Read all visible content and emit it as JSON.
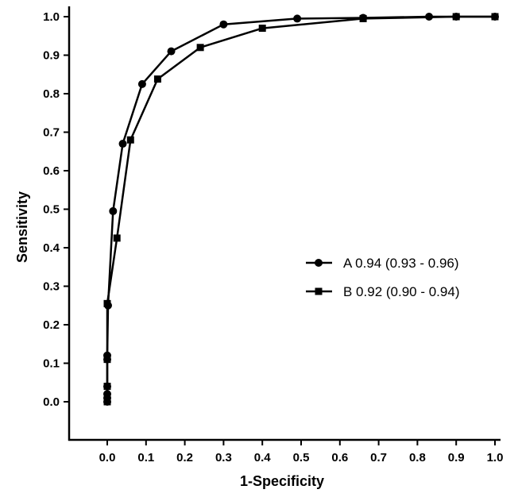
{
  "chart_data": {
    "type": "line",
    "xlabel": "1-Specificity",
    "ylabel": "Sensitivity",
    "xlim": [
      0.0,
      1.0
    ],
    "ylim": [
      0.0,
      1.0
    ],
    "x_ticks": [
      "0.0",
      "0.1",
      "0.2",
      "0.3",
      "0.4",
      "0.5",
      "0.6",
      "0.7",
      "0.8",
      "0.9",
      "1.0"
    ],
    "y_ticks": [
      "0.0",
      "0.1",
      "0.2",
      "0.3",
      "0.4",
      "0.5",
      "0.6",
      "0.7",
      "0.8",
      "0.9",
      "1.0"
    ],
    "grid": false,
    "legend_position": "right-middle",
    "series": [
      {
        "name": "A 0.94 (0.93 - 0.96)",
        "marker": "circle",
        "color": "#000000",
        "points": [
          [
            0.0,
            0.0
          ],
          [
            0.0,
            0.01
          ],
          [
            0.0,
            0.02
          ],
          [
            0.0,
            0.04
          ],
          [
            0.0,
            0.11
          ],
          [
            0.0,
            0.12
          ],
          [
            0.002,
            0.25
          ],
          [
            0.015,
            0.495
          ],
          [
            0.04,
            0.67
          ],
          [
            0.09,
            0.825
          ],
          [
            0.165,
            0.91
          ],
          [
            0.3,
            0.98
          ],
          [
            0.49,
            0.995
          ],
          [
            0.66,
            0.997
          ],
          [
            0.83,
            1.0
          ],
          [
            0.9,
            1.0
          ],
          [
            1.0,
            1.0
          ]
        ]
      },
      {
        "name": "B 0.92 (0.90 - 0.94)",
        "marker": "square",
        "color": "#000000",
        "points": [
          [
            0.0,
            0.0
          ],
          [
            0.0,
            0.04
          ],
          [
            0.0,
            0.11
          ],
          [
            0.0,
            0.255
          ],
          [
            0.025,
            0.425
          ],
          [
            0.06,
            0.68
          ],
          [
            0.13,
            0.838
          ],
          [
            0.24,
            0.92
          ],
          [
            0.4,
            0.97
          ],
          [
            0.66,
            0.995
          ],
          [
            0.9,
            1.0
          ],
          [
            1.0,
            1.0
          ]
        ]
      }
    ]
  }
}
